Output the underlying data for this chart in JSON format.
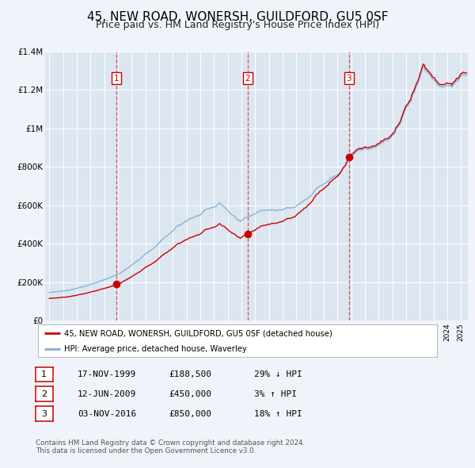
{
  "title": "45, NEW ROAD, WONERSH, GUILDFORD, GU5 0SF",
  "subtitle": "Price paid vs. HM Land Registry's House Price Index (HPI)",
  "title_fontsize": 11,
  "subtitle_fontsize": 9,
  "background_color": "#f0f4fa",
  "plot_bg_color": "#dce6f0",
  "grid_color": "#ffffff",
  "red_color": "#cc0000",
  "blue_color": "#7eadd4",
  "sale_dates": [
    1999.88,
    2009.45,
    2016.84
  ],
  "sale_prices": [
    188500,
    450000,
    850000
  ],
  "sale_labels": [
    "1",
    "2",
    "3"
  ],
  "legend_entries": [
    "45, NEW ROAD, WONERSH, GUILDFORD, GU5 0SF (detached house)",
    "HPI: Average price, detached house, Waverley"
  ],
  "table_rows": [
    {
      "num": "1",
      "date": "17-NOV-1999",
      "price": "£188,500",
      "pct": "29% ↓ HPI"
    },
    {
      "num": "2",
      "date": "12-JUN-2009",
      "price": "£450,000",
      "pct": "3% ↑ HPI"
    },
    {
      "num": "3",
      "date": "03-NOV-2016",
      "price": "£850,000",
      "pct": "18% ↑ HPI"
    }
  ],
  "footer_line1": "Contains HM Land Registry data © Crown copyright and database right 2024.",
  "footer_line2": "This data is licensed under the Open Government Licence v3.0.",
  "ylim": [
    0,
    1400000
  ],
  "xlim": [
    1994.7,
    2025.5
  ],
  "yticks": [
    0,
    200000,
    400000,
    600000,
    800000,
    1000000,
    1200000,
    1400000
  ],
  "ytick_labels": [
    "£0",
    "£200K",
    "£400K",
    "£600K",
    "£800K",
    "£1M",
    "£1.2M",
    "£1.4M"
  ]
}
